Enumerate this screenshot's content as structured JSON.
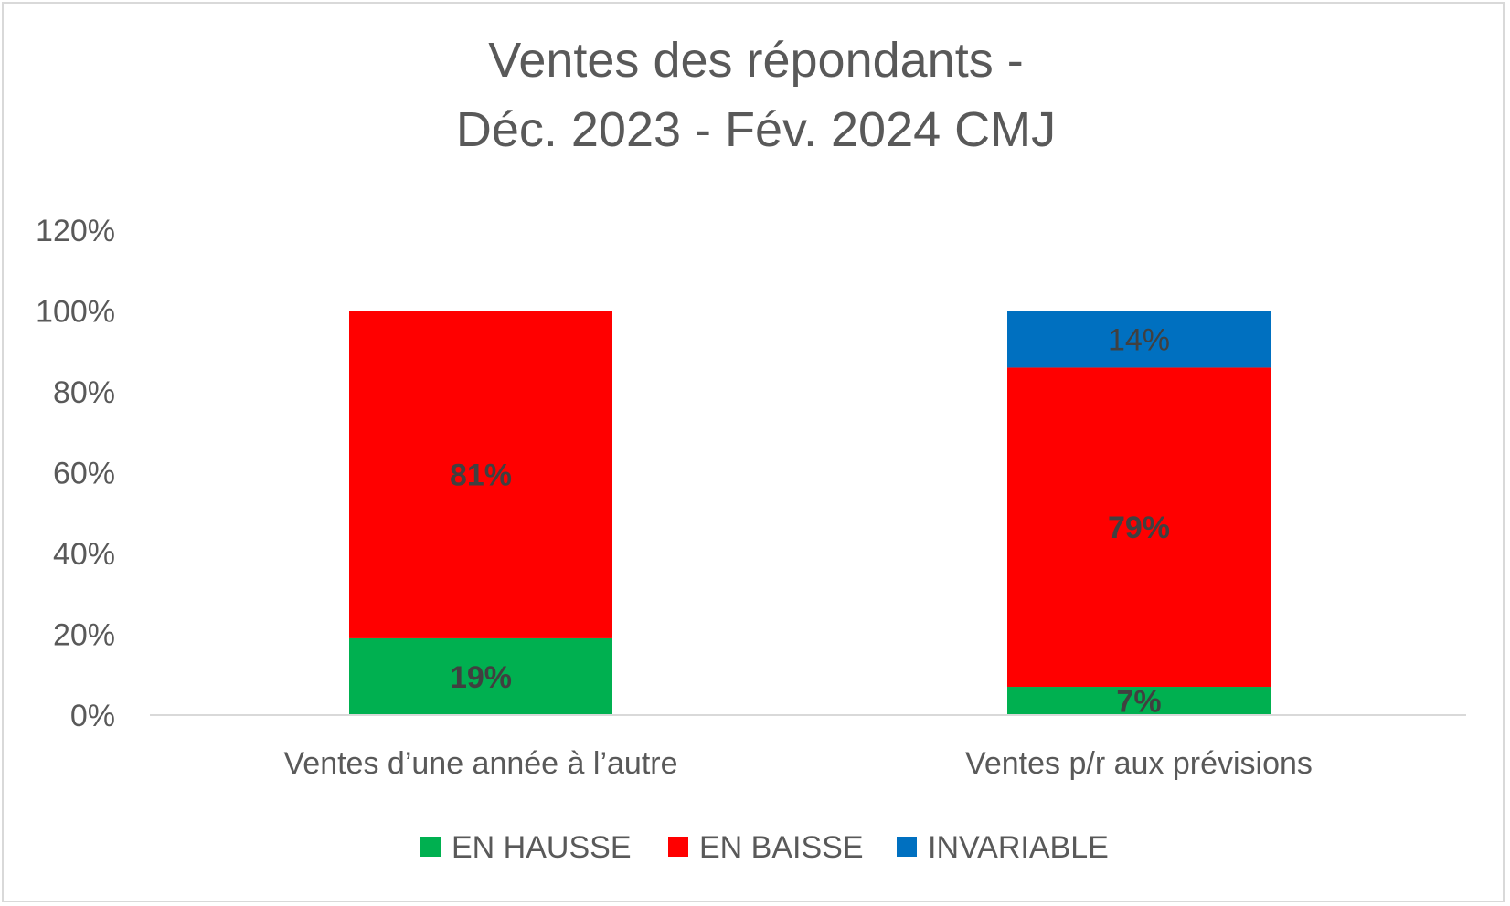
{
  "chart_data": {
    "type": "bar",
    "stacked": true,
    "title_lines": [
      "Ventes des répondants -",
      "Déc. 2023 - Fév. 2024 CMJ"
    ],
    "categories": [
      "Ventes d’une année à l’autre",
      "Ventes p/r aux prévisions"
    ],
    "series": [
      {
        "name": "EN HAUSSE",
        "color": "#00b050",
        "values": [
          19,
          7
        ],
        "labels": [
          "19%",
          "7%"
        ]
      },
      {
        "name": "EN BAISSE",
        "color": "#ff0000",
        "values": [
          81,
          79
        ],
        "labels": [
          "81%",
          "79%"
        ]
      },
      {
        "name": "INVARIABLE",
        "color": "#0070c0",
        "values": [
          0,
          14
        ],
        "labels": [
          "",
          "14%"
        ]
      }
    ],
    "ylim": [
      0,
      120
    ],
    "yticks": [
      0,
      20,
      40,
      60,
      80,
      100,
      120
    ],
    "ytick_labels": [
      "0%",
      "20%",
      "40%",
      "60%",
      "80%",
      "100%",
      "120%"
    ],
    "grid": false,
    "legend_position": "bottom"
  },
  "colors": {
    "text": "#595959",
    "data_label": "#404040",
    "axis_line": "#d9d9d9",
    "frame_border": "#d9d9d9"
  }
}
